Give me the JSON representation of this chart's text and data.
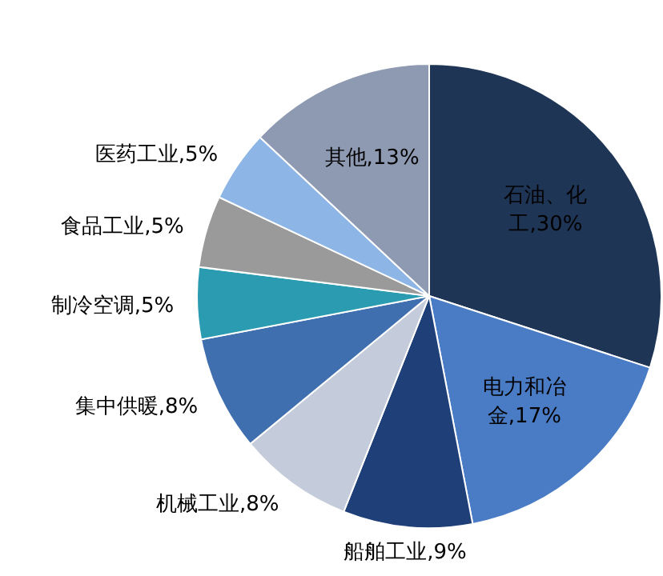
{
  "chart_data": {
    "type": "pie",
    "categories": [
      "石油、化工",
      "电力和冶金",
      "船舶工业",
      "机械工业",
      "集中供暖",
      "制冷空调",
      "食品工业",
      "医药工业",
      "其他"
    ],
    "values": [
      30,
      17,
      9,
      8,
      8,
      5,
      5,
      5,
      13
    ],
    "value_labels": [
      "30%",
      "17%",
      "9%",
      "8%",
      "8%",
      "5%",
      "5%",
      "5%",
      "13%"
    ],
    "colors": [
      "#1f3556",
      "#4a7cc6",
      "#1f3f78",
      "#c4ccdb",
      "#3f6fae",
      "#2a9bb0",
      "#9a9a9a",
      "#8db5e6",
      "#8e9ab2"
    ]
  }
}
